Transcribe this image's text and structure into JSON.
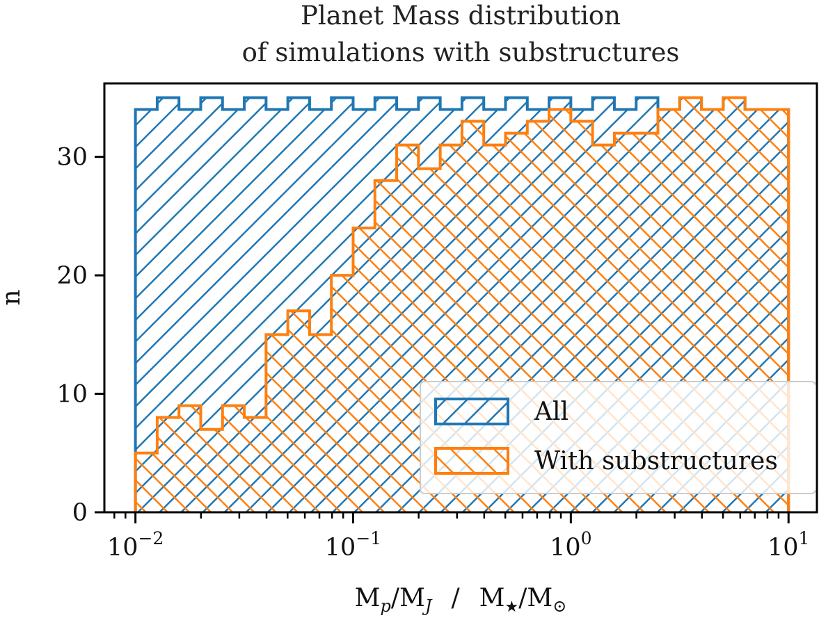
{
  "chart_data": {
    "type": "histogram",
    "title_lines": [
      "Planet Mass distribution",
      "of simulations with substructures"
    ],
    "xlabel_parts": {
      "num1": "M",
      "sub1": "p",
      "mid1": "/M",
      "sub2": "J",
      "sep": "/",
      "num2": "M",
      "sub3": "★",
      "mid2": "/M",
      "sub4": "⊙"
    },
    "ylabel": "n",
    "xscale": "log",
    "xlim": [
      0.0072,
      13.5
    ],
    "ylim": [
      0,
      36.2
    ],
    "bin_edges_log10": [
      -2.0,
      -1.9,
      -1.8,
      -1.7,
      -1.6,
      -1.5,
      -1.4,
      -1.3,
      -1.2,
      -1.1,
      -1.0,
      -0.9,
      -0.8,
      -0.7,
      -0.6,
      -0.5,
      -0.4,
      -0.3,
      -0.2,
      -0.1,
      0.0,
      0.1,
      0.2,
      0.3,
      0.4,
      0.5,
      0.6,
      0.7,
      0.8,
      0.9,
      1.0
    ],
    "x_ticks": [
      {
        "value": 0.01,
        "base": "10",
        "exp": "−2"
      },
      {
        "value": 0.1,
        "base": "10",
        "exp": "−1"
      },
      {
        "value": 1,
        "base": "10",
        "exp": "0"
      },
      {
        "value": 10,
        "base": "10",
        "exp": "1"
      }
    ],
    "y_ticks": [
      {
        "value": 0,
        "label": "0"
      },
      {
        "value": 10,
        "label": "10"
      },
      {
        "value": 20,
        "label": "20"
      },
      {
        "value": 30,
        "label": "30"
      }
    ],
    "series": [
      {
        "name": "All",
        "color": "#1f77b4",
        "hatch": "forward",
        "values": [
          34,
          35,
          34,
          35,
          34,
          35,
          34,
          35,
          34,
          35,
          34,
          35,
          34,
          35,
          34,
          35,
          34,
          35,
          34,
          35,
          34,
          35,
          34,
          35,
          34,
          35,
          34,
          35,
          34,
          34
        ]
      },
      {
        "name": "With substructures",
        "color": "#ff7f0e",
        "hatch": "back",
        "values": [
          5,
          8,
          9,
          7,
          9,
          8,
          15,
          17,
          15,
          20,
          24,
          28,
          31,
          29,
          31,
          33,
          31,
          32,
          33,
          34,
          33,
          31,
          32,
          32,
          34,
          35,
          34,
          35,
          34,
          34
        ]
      }
    ],
    "legend": {
      "location": "lower-right",
      "entries": [
        "All",
        "With substructures"
      ]
    }
  }
}
